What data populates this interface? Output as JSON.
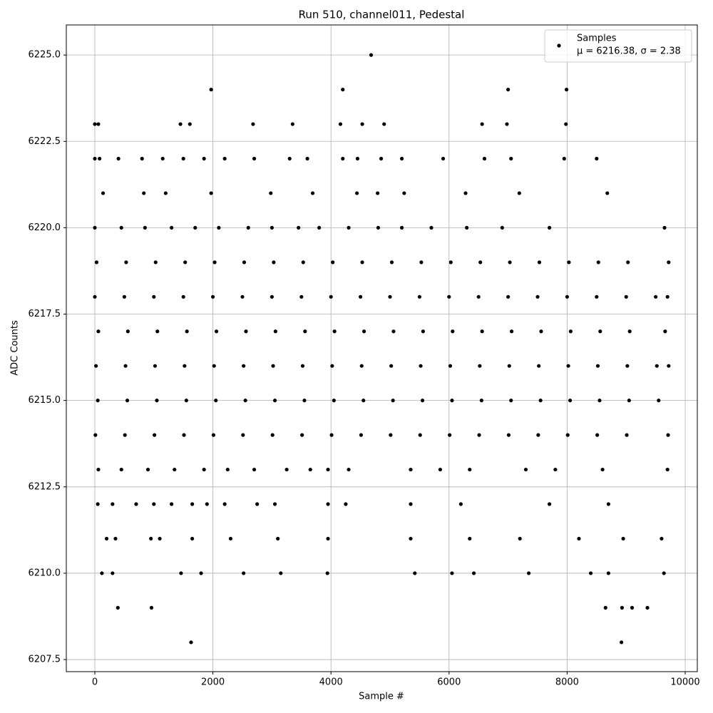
{
  "chart_data": {
    "type": "scatter",
    "title": "Run 510, channel011, Pedestal",
    "x_label": "Sample #",
    "y_label": "ADC Counts",
    "xlim": [
      -483,
      10205
    ],
    "ylim": [
      6207.15,
      6225.87
    ],
    "xticks": [
      0,
      2000,
      4000,
      6000,
      8000,
      10000
    ],
    "yticks": [
      6207.5,
      {
        "value": 6210,
        "label": "6210.0"
      },
      6212.5,
      {
        "value": 6215,
        "label": "6215.0"
      },
      6217.5,
      {
        "value": 6220,
        "label": "6220.0"
      },
      6222.5,
      {
        "value": 6225,
        "label": "6225.0"
      }
    ],
    "grid": true,
    "legend_position": "upper right",
    "series": [
      {
        "name": "Samples",
        "stats": "μ = 6216.38, σ = 2.38",
        "color": "#000000",
        "x": [
          0,
          500,
          1000,
          1500,
          2000,
          2500,
          3000,
          3500,
          4000,
          4500,
          5000,
          5500,
          6000,
          6500,
          7000,
          7500,
          8000,
          8500,
          9000,
          9500,
          9700,
          20,
          520,
          1020,
          1520,
          2020,
          2520,
          3020,
          3520,
          4020,
          4520,
          5020,
          5520,
          6020,
          6520,
          7020,
          7520,
          8020,
          8520,
          9020,
          9520,
          9720,
          50,
          550,
          1050,
          1550,
          2050,
          2550,
          3050,
          3550,
          4050,
          4550,
          5050,
          5550,
          6050,
          6550,
          7050,
          7550,
          8050,
          8550,
          9050,
          9550,
          10,
          510,
          1010,
          1510,
          2010,
          2510,
          3010,
          3510,
          4010,
          4510,
          5010,
          5510,
          6010,
          6510,
          7010,
          7510,
          8010,
          8510,
          9010,
          9710,
          60,
          560,
          1060,
          1560,
          2060,
          2560,
          3060,
          3560,
          4060,
          4560,
          5060,
          5560,
          6060,
          6560,
          7060,
          7560,
          8060,
          8560,
          9060,
          9660,
          30,
          530,
          1030,
          1530,
          2030,
          2530,
          3030,
          3530,
          4030,
          4530,
          5030,
          5530,
          6030,
          6530,
          7030,
          7530,
          8030,
          8530,
          9030,
          9720,
          0,
          450,
          850,
          1300,
          1700,
          2100,
          2600,
          3000,
          3450,
          3800,
          4300,
          4800,
          5200,
          5700,
          6300,
          6900,
          7700,
          9650,
          60,
          450,
          900,
          1350,
          1850,
          2250,
          2700,
          3250,
          3650,
          3950,
          4300,
          5350,
          5850,
          6350,
          7300,
          7800,
          8600,
          9700,
          50,
          300,
          700,
          1000,
          1300,
          1650,
          1900,
          2200,
          2750,
          3050,
          3950,
          4250,
          5350,
          6200,
          7700,
          8700,
          200,
          350,
          950,
          1100,
          1650,
          2300,
          3100,
          3950,
          5350,
          6350,
          7200,
          8200,
          8950,
          9600,
          140,
          830,
          1200,
          1970,
          2980,
          3690,
          4440,
          4790,
          5240,
          6280,
          7190,
          8680,
          0,
          80,
          400,
          800,
          1150,
          1500,
          1850,
          2200,
          2700,
          3300,
          3600,
          4200,
          4450,
          4850,
          5200,
          5900,
          6600,
          7050,
          7950,
          8500,
          0,
          60,
          1450,
          1610,
          2680,
          3350,
          4160,
          4530,
          4900,
          6560,
          6980,
          7980,
          1970,
          4200,
          7000,
          7990,
          4680,
          120,
          300,
          1460,
          1800,
          2520,
          3150,
          3940,
          5420,
          6050,
          6420,
          7350,
          8400,
          8700,
          9640,
          390,
          960,
          8650,
          8930,
          9100,
          9360,
          1630,
          8920
        ],
        "values": [
          6218,
          6218,
          6218,
          6218,
          6218,
          6218,
          6218,
          6218,
          6218,
          6218,
          6218,
          6218,
          6218,
          6218,
          6218,
          6218,
          6218,
          6218,
          6218,
          6218,
          6218,
          6216,
          6216,
          6216,
          6216,
          6216,
          6216,
          6216,
          6216,
          6216,
          6216,
          6216,
          6216,
          6216,
          6216,
          6216,
          6216,
          6216,
          6216,
          6216,
          6216,
          6216,
          6215,
          6215,
          6215,
          6215,
          6215,
          6215,
          6215,
          6215,
          6215,
          6215,
          6215,
          6215,
          6215,
          6215,
          6215,
          6215,
          6215,
          6215,
          6215,
          6215,
          6214,
          6214,
          6214,
          6214,
          6214,
          6214,
          6214,
          6214,
          6214,
          6214,
          6214,
          6214,
          6214,
          6214,
          6214,
          6214,
          6214,
          6214,
          6214,
          6214,
          6217,
          6217,
          6217,
          6217,
          6217,
          6217,
          6217,
          6217,
          6217,
          6217,
          6217,
          6217,
          6217,
          6217,
          6217,
          6217,
          6217,
          6217,
          6217,
          6217,
          6219,
          6219,
          6219,
          6219,
          6219,
          6219,
          6219,
          6219,
          6219,
          6219,
          6219,
          6219,
          6219,
          6219,
          6219,
          6219,
          6219,
          6219,
          6219,
          6219,
          6220,
          6220,
          6220,
          6220,
          6220,
          6220,
          6220,
          6220,
          6220,
          6220,
          6220,
          6220,
          6220,
          6220,
          6220,
          6220,
          6220,
          6220,
          6213,
          6213,
          6213,
          6213,
          6213,
          6213,
          6213,
          6213,
          6213,
          6213,
          6213,
          6213,
          6213,
          6213,
          6213,
          6213,
          6213,
          6213,
          6212,
          6212,
          6212,
          6212,
          6212,
          6212,
          6212,
          6212,
          6212,
          6212,
          6212,
          6212,
          6212,
          6212,
          6212,
          6212,
          6211,
          6211,
          6211,
          6211,
          6211,
          6211,
          6211,
          6211,
          6211,
          6211,
          6211,
          6211,
          6211,
          6211,
          6221,
          6221,
          6221,
          6221,
          6221,
          6221,
          6221,
          6221,
          6221,
          6221,
          6221,
          6221,
          6222,
          6222,
          6222,
          6222,
          6222,
          6222,
          6222,
          6222,
          6222,
          6222,
          6222,
          6222,
          6222,
          6222,
          6222,
          6222,
          6222,
          6222,
          6222,
          6222,
          6223,
          6223,
          6223,
          6223,
          6223,
          6223,
          6223,
          6223,
          6223,
          6223,
          6223,
          6223,
          6224,
          6224,
          6224,
          6224,
          6225,
          6210,
          6210,
          6210,
          6210,
          6210,
          6210,
          6210,
          6210,
          6210,
          6210,
          6210,
          6210,
          6210,
          6210,
          6209,
          6209,
          6209,
          6209,
          6209,
          6209,
          6208,
          6208
        ]
      }
    ]
  }
}
